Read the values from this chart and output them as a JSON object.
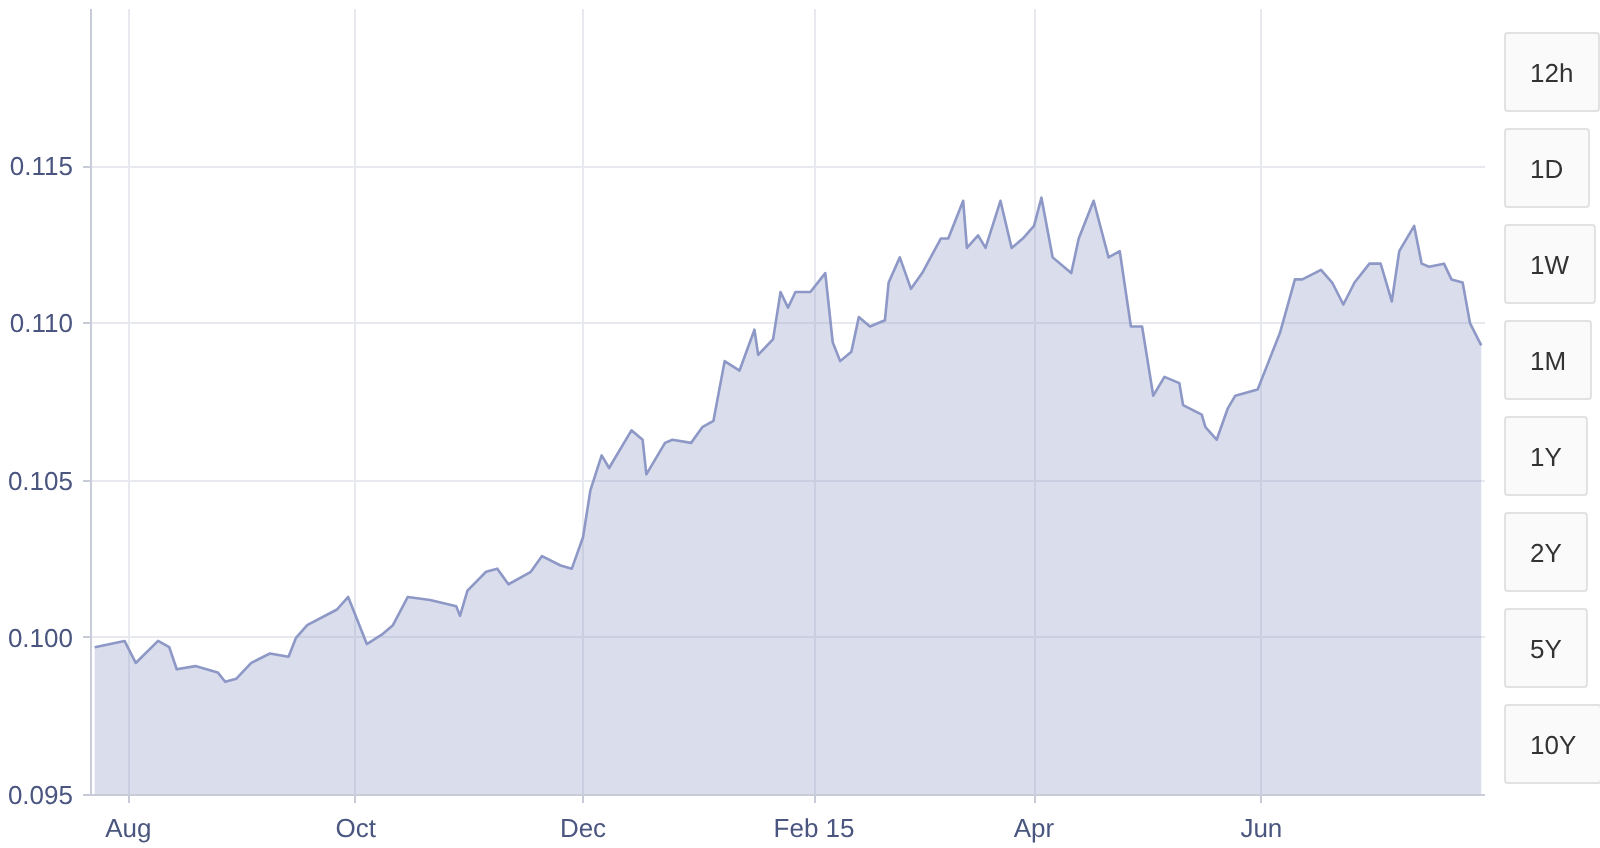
{
  "chart_data": {
    "type": "area",
    "x": [
      "2014-07-23",
      "2014-07-31",
      "2014-08-03",
      "2014-08-09",
      "2014-08-12",
      "2014-08-14",
      "2014-08-19",
      "2014-08-25",
      "2014-08-27",
      "2014-08-30",
      "2014-09-03",
      "2014-09-08",
      "2014-09-13",
      "2014-09-15",
      "2014-09-18",
      "2014-09-26",
      "2014-09-29",
      "2014-10-01",
      "2014-10-04",
      "2014-10-08",
      "2014-10-11",
      "2014-10-15",
      "2014-10-21",
      "2014-10-28",
      "2014-10-29",
      "2014-10-31",
      "2014-11-05",
      "2014-11-08",
      "2014-11-11",
      "2014-11-17",
      "2014-11-20",
      "2014-11-25",
      "2014-11-28",
      "2014-12-01",
      "2014-12-03",
      "2014-12-06",
      "2014-12-08",
      "2014-12-12",
      "2014-12-14",
      "2014-12-17",
      "2014-12-18",
      "2014-12-23",
      "2014-12-25",
      "2014-12-30",
      "2015-01-02",
      "2015-01-05",
      "2015-01-08",
      "2015-01-12",
      "2015-01-16",
      "2015-01-17",
      "2015-01-21",
      "2015-01-23",
      "2015-01-25",
      "2015-01-27",
      "2015-01-31",
      "2015-02-04",
      "2015-02-06",
      "2015-02-08",
      "2015-02-11",
      "2015-02-13",
      "2015-02-16",
      "2015-02-20",
      "2015-02-21",
      "2015-02-24",
      "2015-02-27",
      "2015-03-02",
      "2015-03-07",
      "2015-03-09",
      "2015-03-13",
      "2015-03-14",
      "2015-03-17",
      "2015-03-19",
      "2015-03-23",
      "2015-03-26",
      "2015-03-29",
      "2015-04-01",
      "2015-04-03",
      "2015-04-06",
      "2015-04-11",
      "2015-04-13",
      "2015-04-17",
      "2015-04-21",
      "2015-04-24",
      "2015-04-27",
      "2015-04-30",
      "2015-05-03",
      "2015-05-06",
      "2015-05-10",
      "2015-05-11",
      "2015-05-16",
      "2015-05-17",
      "2015-05-20",
      "2015-05-23",
      "2015-05-25",
      "2015-05-31",
      "2015-06-03",
      "2015-06-06",
      "2015-06-10",
      "2015-06-12",
      "2015-06-17",
      "2015-06-20",
      "2015-06-23",
      "2015-06-26",
      "2015-06-30",
      "2015-07-03",
      "2015-07-06",
      "2015-07-08",
      "2015-07-12",
      "2015-07-14",
      "2015-07-16",
      "2015-07-20",
      "2015-07-22",
      "2015-07-25",
      "2015-07-27",
      "2015-07-30"
    ],
    "series": [
      {
        "color": "#8d98c6",
        "values": [
          0.0997,
          0.0999,
          0.0992,
          0.0999,
          0.0997,
          0.099,
          0.0991,
          0.0989,
          0.0986,
          0.0987,
          0.0992,
          0.0995,
          0.0994,
          0.1,
          0.1004,
          0.1009,
          0.1013,
          0.1007,
          0.0998,
          0.1001,
          0.1004,
          0.1013,
          0.1012,
          0.101,
          0.1007,
          0.1015,
          0.1021,
          0.1022,
          0.1017,
          0.1021,
          0.1026,
          0.1023,
          0.1022,
          0.1032,
          0.1047,
          0.1058,
          0.1054,
          0.1062,
          0.1066,
          0.1063,
          0.1052,
          0.1062,
          0.1063,
          0.1062,
          0.1067,
          0.1069,
          0.1088,
          0.1085,
          0.1098,
          0.109,
          0.1095,
          0.111,
          0.1105,
          0.111,
          0.111,
          0.1116,
          0.1094,
          0.1088,
          0.1091,
          0.1102,
          0.1099,
          0.1101,
          0.1113,
          0.1121,
          0.1111,
          0.1116,
          0.1127,
          0.1127,
          0.1139,
          0.1124,
          0.1128,
          0.1124,
          0.1139,
          0.1124,
          0.1127,
          0.1131,
          0.114,
          0.1121,
          0.1116,
          0.1127,
          0.1139,
          0.1121,
          0.1123,
          0.1099,
          0.1099,
          0.1077,
          0.1083,
          0.1081,
          0.1074,
          0.1071,
          0.1067,
          0.1063,
          0.1073,
          0.1077,
          0.1079,
          0.1088,
          0.1097,
          0.1114,
          0.1114,
          0.1117,
          0.1113,
          0.1106,
          0.1113,
          0.1119,
          0.1119,
          0.1107,
          0.1123,
          0.1131,
          0.1119,
          0.1118,
          0.1119,
          0.1114,
          0.1113,
          0.11,
          0.1093
        ]
      }
    ],
    "xlim": [
      "2014-07-22",
      "2015-07-31"
    ],
    "xticks": [
      {
        "value": "2014-08-01",
        "label": "Aug"
      },
      {
        "value": "2014-10-01",
        "label": "Oct"
      },
      {
        "value": "2014-12-01",
        "label": "Dec"
      },
      {
        "value": "2015-02-01",
        "label": "Feb 15"
      },
      {
        "value": "2015-04-01",
        "label": "Apr"
      },
      {
        "value": "2015-06-01",
        "label": "Jun"
      }
    ],
    "ylim": [
      0.095,
      0.12
    ],
    "yticks": [
      0.095,
      {
        "value": 0.1,
        "label": "0.100"
      },
      0.105,
      {
        "value": 0.11,
        "label": "0.110"
      },
      0.115
    ],
    "grid": true,
    "annotations": [
      "12h",
      "1D",
      "1W",
      "1M",
      "1Y",
      "2Y",
      "5Y",
      "10Y"
    ]
  }
}
